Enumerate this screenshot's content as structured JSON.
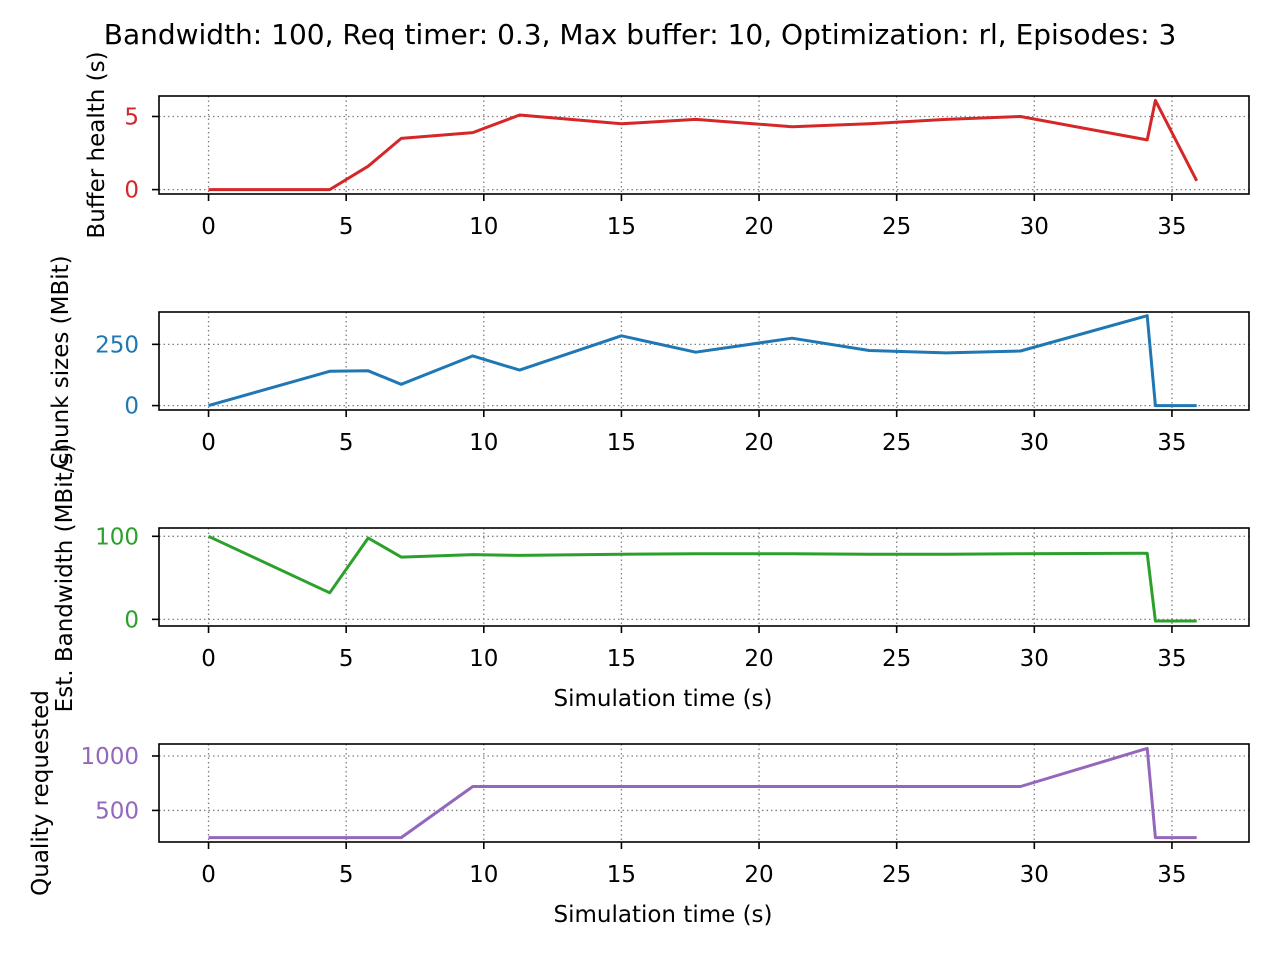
{
  "figure_title": "Bandwidth: 100, Req timer: 0.3, Max buffer: 10, Optimization: rl, Episodes: 3",
  "chart_data": [
    {
      "type": "line",
      "ylabel": "Buffer health (s)",
      "xlabel": "",
      "color": "#d62728",
      "xlim": [
        -1.8,
        37.8
      ],
      "ylim": [
        -0.3,
        6.4
      ],
      "x_ticks": [
        0,
        5,
        10,
        15,
        20,
        25,
        30,
        35
      ],
      "y_ticks": [
        0,
        5
      ],
      "grid": true,
      "series": [
        {
          "x": [
            0,
            4.4,
            5.8,
            7.0,
            9.6,
            11.3,
            15.0,
            17.7,
            21.2,
            24.0,
            26.8,
            29.5,
            34.1,
            34.4,
            35.9
          ],
          "y": [
            0,
            0,
            1.6,
            3.5,
            3.9,
            5.1,
            4.5,
            4.8,
            4.3,
            4.5,
            4.8,
            5.0,
            3.4,
            6.1,
            0.6
          ]
        }
      ]
    },
    {
      "type": "line",
      "ylabel": "Chunk sizes (MBit)",
      "xlabel": "",
      "color": "#1f77b4",
      "xlim": [
        -1.8,
        37.8
      ],
      "ylim": [
        -18,
        382
      ],
      "x_ticks": [
        0,
        5,
        10,
        15,
        20,
        25,
        30,
        35
      ],
      "y_ticks": [
        0,
        250
      ],
      "grid": true,
      "series": [
        {
          "x": [
            0,
            4.4,
            5.8,
            7.0,
            9.6,
            11.3,
            15.0,
            17.7,
            21.2,
            24.0,
            26.8,
            29.5,
            34.1,
            34.4,
            35.9
          ],
          "y": [
            0,
            140,
            142,
            87,
            203,
            145,
            285,
            218,
            275,
            225,
            215,
            223,
            367,
            0,
            0
          ]
        }
      ]
    },
    {
      "type": "line",
      "ylabel": "Est. Bandwidth (MBit/s)",
      "xlabel": "Simulation time (s)",
      "color": "#2ca02c",
      "xlim": [
        -1.8,
        37.8
      ],
      "ylim": [
        -8,
        110
      ],
      "x_ticks": [
        0,
        5,
        10,
        15,
        20,
        25,
        30,
        35
      ],
      "y_ticks": [
        0,
        100
      ],
      "grid": true,
      "series": [
        {
          "x": [
            0,
            4.4,
            5.8,
            7.0,
            9.6,
            11.3,
            15.0,
            17.7,
            21.2,
            24.0,
            26.8,
            29.5,
            34.1,
            34.4,
            35.9
          ],
          "y": [
            100,
            32,
            98,
            75,
            78,
            77,
            78.5,
            79,
            79,
            78.5,
            78.5,
            79,
            79.5,
            -2,
            -2
          ]
        }
      ]
    },
    {
      "type": "line",
      "ylabel": "Quality requested",
      "xlabel": "Simulation time (s)",
      "color": "#9467bd",
      "xlim": [
        -1.8,
        37.8
      ],
      "ylim": [
        210,
        1110
      ],
      "x_ticks": [
        0,
        5,
        10,
        15,
        20,
        25,
        30,
        35
      ],
      "y_ticks": [
        500,
        1000
      ],
      "grid": true,
      "series": [
        {
          "x": [
            0,
            4.4,
            5.8,
            7.0,
            9.6,
            11.3,
            15.0,
            17.7,
            21.2,
            24.0,
            26.8,
            29.5,
            34.1,
            34.4,
            35.9
          ],
          "y": [
            250,
            250,
            250,
            250,
            720,
            720,
            720,
            720,
            720,
            720,
            720,
            720,
            1070,
            250,
            250
          ]
        }
      ]
    }
  ]
}
